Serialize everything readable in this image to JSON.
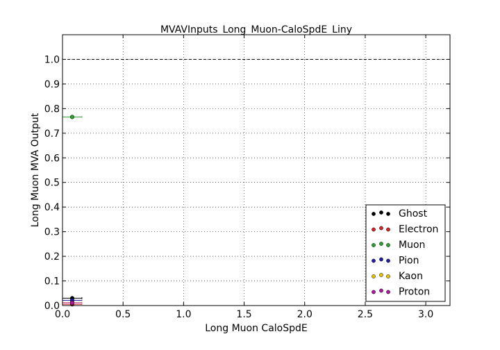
{
  "chart_data": {
    "type": "scatter",
    "title": "MVAVInputs_Long_Muon-CaloSpdE_Liny",
    "xlabel": "Long Muon CaloSpdE",
    "ylabel": "Long Muon MVA Output",
    "xlim": [
      0.0,
      3.2
    ],
    "ylim": [
      0.0,
      1.1
    ],
    "grid": true,
    "legend_position": "bottom-right",
    "x_ticks": [
      {
        "value": 0.0,
        "label": "0.0"
      },
      {
        "value": 0.5,
        "label": "0.5"
      },
      {
        "value": 1.0,
        "label": "1.0"
      },
      {
        "value": 1.5,
        "label": "1.5"
      },
      {
        "value": 2.0,
        "label": "2.0"
      },
      {
        "value": 2.5,
        "label": "2.5"
      },
      {
        "value": 3.0,
        "label": "3.0"
      }
    ],
    "y_ticks": [
      {
        "value": 0.0,
        "label": "0.0"
      },
      {
        "value": 0.1,
        "label": "0.1"
      },
      {
        "value": 0.2,
        "label": "0.2"
      },
      {
        "value": 0.3,
        "label": "0.3"
      },
      {
        "value": 0.4,
        "label": "0.4"
      },
      {
        "value": 0.5,
        "label": "0.5"
      },
      {
        "value": 0.6,
        "label": "0.6"
      },
      {
        "value": 0.7,
        "label": "0.7"
      },
      {
        "value": 0.8,
        "label": "0.8"
      },
      {
        "value": 0.9,
        "label": "0.9"
      },
      {
        "value": 1.0,
        "label": "1.0"
      }
    ],
    "reference_line": {
      "y": 1.0,
      "style": "dashed"
    },
    "series": [
      {
        "name": "Ghost",
        "color": "#000000",
        "points": [
          {
            "x": 0.08,
            "y": 0.03,
            "xerr": 0.08,
            "yerr": 0.004
          }
        ]
      },
      {
        "name": "Electron",
        "color": "#d62728",
        "points": [
          {
            "x": 0.08,
            "y": 0.005,
            "xerr": 0.08,
            "yerr": 0.002
          }
        ]
      },
      {
        "name": "Muon",
        "color": "#2ca02c",
        "points": [
          {
            "x": 0.08,
            "y": 0.766,
            "xerr": 0.08,
            "yerr": 0.003
          }
        ]
      },
      {
        "name": "Pion",
        "color": "#1f1fa0",
        "points": [
          {
            "x": 0.08,
            "y": 0.021,
            "xerr": 0.08,
            "yerr": 0.002
          }
        ]
      },
      {
        "name": "Kaon",
        "color": "#e6c200",
        "points": [
          {
            "x": 0.08,
            "y": 0.012,
            "xerr": 0.08,
            "yerr": 0.002
          }
        ]
      },
      {
        "name": "Proton",
        "color": "#b0179f",
        "points": [
          {
            "x": 0.08,
            "y": 0.011,
            "xerr": 0.08,
            "yerr": 0.002
          }
        ]
      }
    ]
  }
}
